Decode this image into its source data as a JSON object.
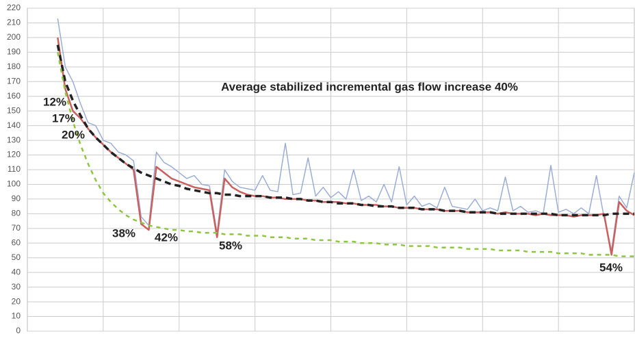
{
  "chart_data": {
    "type": "line",
    "title": "Average stabilized incremental gas flow increase 40%",
    "annotations": [
      "12%",
      "17%",
      "20%",
      "38%",
      "42%",
      "58%",
      "54%"
    ],
    "x": [
      0,
      1,
      2,
      3,
      4,
      5,
      6,
      7,
      8,
      9,
      10,
      11,
      12,
      13,
      14,
      15,
      16,
      17,
      18,
      19,
      20,
      21,
      22,
      23,
      24,
      25,
      26,
      27,
      28,
      29,
      30,
      31,
      32,
      33,
      34,
      35,
      36,
      37,
      38,
      39,
      40,
      41,
      42,
      43,
      44,
      45,
      46,
      47,
      48,
      49,
      50,
      51,
      52,
      53,
      54,
      55,
      56,
      57,
      58,
      59,
      60,
      61,
      62,
      63,
      64,
      65,
      66,
      67,
      68,
      69,
      70,
      71,
      72,
      73,
      74,
      75,
      76,
      77,
      78,
      79,
      80
    ],
    "xlim": [
      0,
      80
    ],
    "ylim": [
      0,
      220
    ],
    "yticks": [
      0,
      10,
      20,
      30,
      40,
      50,
      60,
      70,
      80,
      90,
      100,
      110,
      120,
      130,
      140,
      150,
      160,
      170,
      180,
      190,
      200,
      210,
      220
    ],
    "grid": true,
    "series": [
      {
        "color": "#9badd6",
        "dash": false,
        "width": 1.5,
        "values": [
          null,
          null,
          null,
          null,
          213,
          180,
          170,
          155,
          142,
          140,
          130,
          128,
          122,
          120,
          116,
          78,
          72,
          122,
          115,
          112,
          108,
          104,
          106,
          100,
          99,
          67,
          110,
          102,
          98,
          97,
          96,
          106,
          96,
          95,
          128,
          93,
          94,
          118,
          92,
          98,
          91,
          95,
          90,
          110,
          89,
          92,
          88,
          100,
          88,
          112,
          86,
          92,
          85,
          87,
          84,
          98,
          85,
          84,
          83,
          90,
          82,
          84,
          82,
          105,
          82,
          85,
          81,
          82,
          80,
          113,
          81,
          83,
          80,
          84,
          80,
          106,
          78,
          55,
          92,
          84,
          108
        ]
      },
      {
        "color": "#c9605e",
        "dash": false,
        "width": 2.5,
        "values": [
          null,
          null,
          null,
          null,
          200,
          165,
          150,
          145,
          138,
          132,
          127,
          122,
          118,
          114,
          110,
          73,
          69,
          112,
          108,
          104,
          102,
          100,
          98,
          97,
          96,
          64,
          104,
          98,
          95,
          93,
          92,
          92,
          91,
          91,
          90,
          90,
          90,
          89,
          89,
          88,
          88,
          88,
          87,
          87,
          86,
          86,
          86,
          85,
          85,
          84,
          84,
          84,
          83,
          83,
          83,
          82,
          82,
          82,
          81,
          81,
          81,
          81,
          80,
          81,
          80,
          80,
          80,
          79,
          80,
          79,
          79,
          79,
          78,
          79,
          79,
          79,
          80,
          52,
          88,
          82,
          79
        ]
      },
      {
        "color": "#222222",
        "dash": true,
        "width": 3.5,
        "values": [
          null,
          null,
          null,
          null,
          195,
          170,
          157,
          147,
          138,
          132,
          127,
          122,
          118,
          114,
          111,
          108,
          106,
          104,
          102,
          100,
          99,
          97,
          96,
          95,
          94,
          94,
          93,
          93,
          92,
          92,
          92,
          92,
          91,
          91,
          91,
          90,
          90,
          89,
          89,
          88,
          88,
          87,
          87,
          87,
          86,
          86,
          85,
          85,
          85,
          84,
          84,
          84,
          83,
          83,
          83,
          82,
          82,
          82,
          81,
          81,
          81,
          81,
          80,
          80,
          80,
          80,
          80,
          80,
          80,
          80,
          79,
          79,
          79,
          79,
          79,
          79,
          79,
          80,
          80,
          80,
          80
        ]
      },
      {
        "color": "#8dc63f",
        "dash": true,
        "width": 2.5,
        "values": [
          null,
          null,
          null,
          null,
          190,
          163,
          143,
          127,
          114,
          103,
          94,
          88,
          83,
          79,
          76,
          74,
          72,
          71,
          70,
          69,
          69,
          68,
          68,
          67,
          67,
          67,
          66,
          66,
          66,
          65,
          65,
          65,
          64,
          64,
          64,
          63,
          63,
          63,
          62,
          62,
          62,
          61,
          61,
          61,
          60,
          60,
          60,
          59,
          59,
          59,
          58,
          58,
          58,
          58,
          57,
          57,
          57,
          57,
          56,
          56,
          56,
          56,
          55,
          55,
          55,
          55,
          54,
          54,
          54,
          54,
          53,
          53,
          53,
          53,
          52,
          52,
          52,
          52,
          51,
          51,
          51
        ]
      }
    ]
  }
}
